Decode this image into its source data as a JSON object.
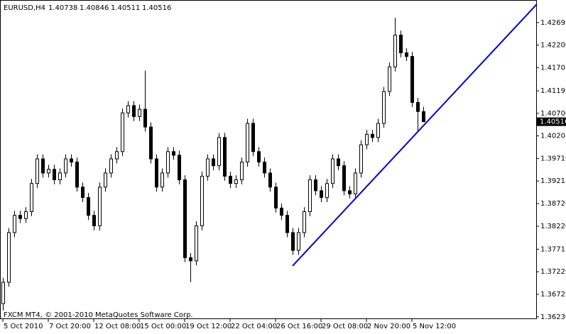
{
  "chart_data": {
    "type": "candlestick",
    "symbol": "EURUSD,H4",
    "footer": "FXCM MT4, © 2001-2010 MetaQuotes Software Corp.",
    "categories": [
      "5 Oct 2010",
      null,
      null,
      null,
      null,
      null,
      null,
      null,
      "7 Oct 20:00",
      null,
      null,
      null,
      null,
      null,
      null,
      null,
      "12 Oct 08:00",
      null,
      null,
      null,
      null,
      null,
      null,
      null,
      "15 Oct 00:00",
      null,
      null,
      null,
      null,
      null,
      null,
      null,
      "19 Oct 12:00",
      null,
      null,
      null,
      null,
      null,
      null,
      null,
      "22 Oct 04:00",
      null,
      null,
      null,
      null,
      null,
      null,
      null,
      "26 Oct 16:00",
      null,
      null,
      null,
      null,
      null,
      null,
      null,
      "29 Oct 08:00",
      null,
      null,
      null,
      null,
      null,
      null,
      null,
      "2 Nov 20:00",
      null,
      null,
      null,
      null,
      null,
      null,
      null,
      "5 Nov 12:00",
      null,
      null
    ],
    "open": [
      1.3652,
      1.3699,
      1.3808,
      1.3846,
      1.3839,
      1.3854,
      1.3916,
      1.397,
      1.3939,
      1.3947,
      1.3924,
      1.3939,
      1.397,
      1.3963,
      1.3908,
      1.3885,
      1.3846,
      1.3823,
      1.3908,
      1.3939,
      1.397,
      1.3986,
      1.4071,
      1.4087,
      1.4063,
      1.4079,
      1.404,
      1.397,
      1.3908,
      1.3939,
      1.3986,
      1.3978,
      1.3924,
      1.3753,
      1.3746,
      1.3823,
      1.3932,
      1.397,
      1.3955,
      1.4017,
      1.3932,
      1.3916,
      1.3924,
      1.3963,
      1.4048,
      1.3986,
      1.3963,
      1.3939,
      1.3908,
      1.3862,
      1.3846,
      1.3808,
      1.3769,
      1.3808,
      1.3854,
      1.3924,
      1.39,
      1.3885,
      1.3916,
      1.397,
      1.3955,
      1.39,
      1.3893,
      1.3939,
      1.4001,
      1.4024,
      1.4017,
      1.4048,
      1.4118,
      1.4172,
      1.4242,
      1.4203,
      1.4195,
      1.4094,
      1.40738
    ],
    "high": [
      1.3709,
      1.3818,
      1.3856,
      1.3856,
      1.3864,
      1.3926,
      1.398,
      1.398,
      1.3957,
      1.3957,
      1.3949,
      1.398,
      1.398,
      1.3973,
      1.3918,
      1.3895,
      1.3856,
      1.3918,
      1.3949,
      1.398,
      1.3996,
      1.4081,
      1.4097,
      1.4097,
      1.4089,
      1.4164,
      1.405,
      1.398,
      1.3949,
      1.3996,
      1.3996,
      1.3988,
      1.3934,
      1.3763,
      1.3833,
      1.3942,
      1.398,
      1.398,
      1.4027,
      1.4027,
      1.3942,
      1.3934,
      1.3973,
      1.4058,
      1.4058,
      1.3996,
      1.3973,
      1.3949,
      1.3918,
      1.3872,
      1.3856,
      1.3818,
      1.3818,
      1.3864,
      1.3934,
      1.3934,
      1.391,
      1.3926,
      1.398,
      1.398,
      1.3965,
      1.391,
      1.3949,
      1.4011,
      1.4034,
      1.4034,
      1.4058,
      1.4128,
      1.4182,
      1.428,
      1.4252,
      1.4213,
      1.4205,
      1.4104,
      1.40846
    ],
    "low": [
      1.3637,
      1.3689,
      1.3798,
      1.3829,
      1.3829,
      1.3844,
      1.3906,
      1.3929,
      1.3929,
      1.3914,
      1.3914,
      1.3929,
      1.3953,
      1.3898,
      1.3875,
      1.3836,
      1.3813,
      1.3813,
      1.3898,
      1.3929,
      1.396,
      1.3976,
      1.4061,
      1.4053,
      1.4053,
      1.403,
      1.396,
      1.3898,
      1.3898,
      1.3929,
      1.3968,
      1.3914,
      1.3743,
      1.3699,
      1.3736,
      1.3813,
      1.3922,
      1.3945,
      1.3945,
      1.3922,
      1.3906,
      1.3906,
      1.3914,
      1.3953,
      1.3976,
      1.3953,
      1.3929,
      1.3898,
      1.3852,
      1.3836,
      1.3798,
      1.3759,
      1.3759,
      1.3798,
      1.3844,
      1.389,
      1.3875,
      1.3875,
      1.3906,
      1.3945,
      1.389,
      1.3883,
      1.3883,
      1.3929,
      1.3991,
      1.4007,
      1.4007,
      1.4038,
      1.4108,
      1.4162,
      1.4193,
      1.4185,
      1.4084,
      1.403,
      1.40511
    ],
    "close": [
      1.3699,
      1.3808,
      1.3846,
      1.3839,
      1.3854,
      1.3916,
      1.397,
      1.3939,
      1.3947,
      1.3924,
      1.3939,
      1.397,
      1.3963,
      1.3908,
      1.3885,
      1.3846,
      1.3823,
      1.3908,
      1.3939,
      1.397,
      1.3986,
      1.4071,
      1.4087,
      1.4063,
      1.4079,
      1.404,
      1.397,
      1.3908,
      1.3939,
      1.3986,
      1.3978,
      1.3924,
      1.3753,
      1.3746,
      1.3823,
      1.3932,
      1.397,
      1.3955,
      1.4017,
      1.3932,
      1.3916,
      1.3924,
      1.3963,
      1.4048,
      1.3986,
      1.3963,
      1.3939,
      1.3908,
      1.3862,
      1.3846,
      1.3808,
      1.3769,
      1.3808,
      1.3854,
      1.3924,
      1.39,
      1.3885,
      1.3916,
      1.397,
      1.3955,
      1.39,
      1.3893,
      1.3939,
      1.4001,
      1.4024,
      1.4017,
      1.4048,
      1.4118,
      1.4172,
      1.4242,
      1.4203,
      1.4195,
      1.4094,
      1.4074,
      1.40516
    ],
    "color": "#000000",
    "trendline": {
      "x": [
        51,
        94
      ],
      "y": [
        1.3735,
        1.431
      ],
      "color": "#0000cc"
    },
    "ylim": [
      1.3618,
      1.4319
    ],
    "yticks": [
      {
        "value": 1.42695,
        "label": "1.42695"
      },
      {
        "value": 1.422,
        "label": "1.42200"
      },
      {
        "value": 1.41705,
        "label": "1.41705"
      },
      {
        "value": 1.41195,
        "label": "1.41195"
      },
      {
        "value": 1.407,
        "label": "1.40700"
      },
      {
        "value": 1.40205,
        "label": "1.40205"
      },
      {
        "value": 1.3971,
        "label": "1.39710"
      },
      {
        "value": 1.39215,
        "label": "1.39215"
      },
      {
        "value": 1.3872,
        "label": "1.38720"
      },
      {
        "value": 1.3822,
        "label": "1.38220"
      },
      {
        "value": 1.37715,
        "label": "1.37715"
      },
      {
        "value": 1.3722,
        "label": "1.37220"
      },
      {
        "value": 1.36725,
        "label": "1.36725"
      },
      {
        "value": 1.3623,
        "label": "1.36230"
      }
    ]
  }
}
